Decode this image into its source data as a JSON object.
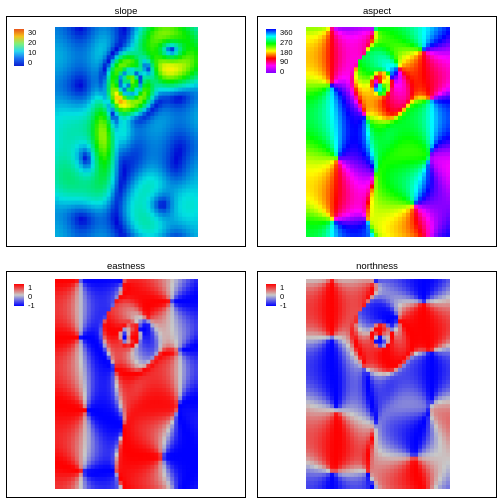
{
  "chart_data": [
    {
      "type": "heatmap",
      "title": "slope",
      "legend_ticks": [
        "30",
        "20",
        "10",
        "0"
      ],
      "range": [
        0,
        35
      ],
      "palette": "rainbow-blue-to-red",
      "legend_placement": "top-left"
    },
    {
      "type": "heatmap",
      "title": "aspect",
      "legend_ticks": [
        "360",
        "270",
        "180",
        "90",
        "0"
      ],
      "range": [
        0,
        360
      ],
      "palette": "hue-circle",
      "legend_placement": "top-left"
    },
    {
      "type": "heatmap",
      "title": "eastness",
      "legend_ticks": [
        "1",
        "0",
        "-1"
      ],
      "range": [
        -1,
        1
      ],
      "palette": "blue-grey-red",
      "legend_placement": "top-left"
    },
    {
      "type": "heatmap",
      "title": "northness",
      "legend_ticks": [
        "1",
        "0",
        "-1"
      ],
      "range": [
        -1,
        1
      ],
      "palette": "blue-grey-red",
      "legend_placement": "top-left"
    }
  ],
  "colors": {
    "frame": "#000000",
    "na_cell": "#ffffff"
  }
}
